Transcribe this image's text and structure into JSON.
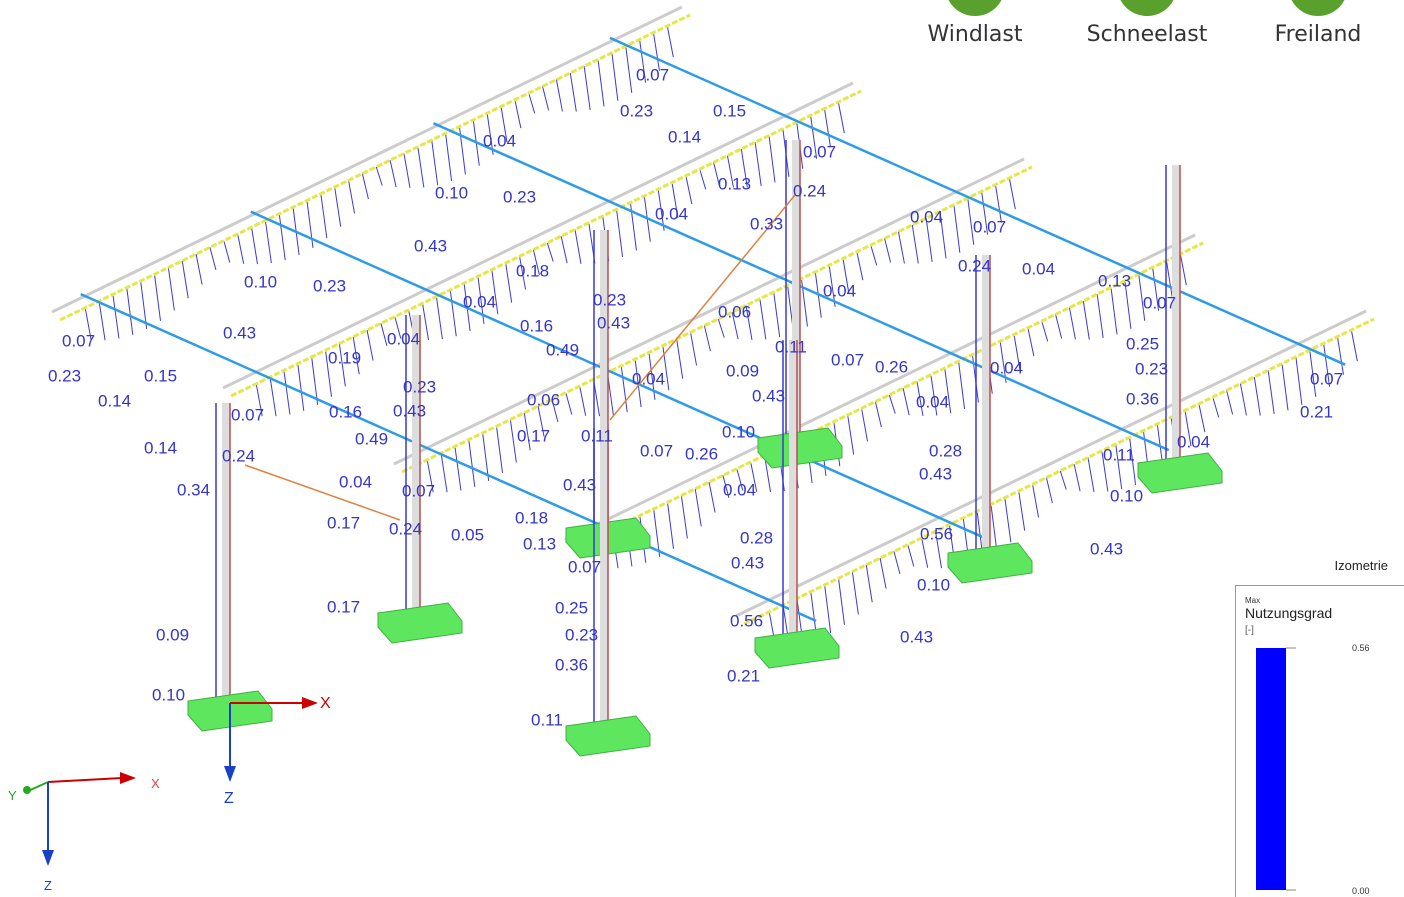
{
  "header": {
    "tabs": [
      "Windlast",
      "Schneelast",
      "Freiland"
    ]
  },
  "model": {
    "result_labels": [
      "0.07",
      "0.23",
      "0.15",
      "0.14",
      "0.04",
      "0.07",
      "0.13",
      "0.24",
      "0.10",
      "0.23",
      "0.04",
      "0.33",
      "0.04",
      "0.07",
      "0.43",
      "0.24",
      "0.04",
      "0.13",
      "0.10",
      "0.23",
      "0.18",
      "0.04",
      "0.04",
      "0.23",
      "0.07",
      "0.06",
      "0.43",
      "0.16",
      "0.43",
      "0.07",
      "0.04",
      "0.11",
      "0.49",
      "0.25",
      "0.19",
      "0.07",
      "0.26",
      "0.04",
      "0.09",
      "0.23",
      "0.15",
      "0.23",
      "0.04",
      "0.23",
      "0.43",
      "0.36",
      "0.07",
      "0.14",
      "0.06",
      "0.04",
      "0.16",
      "0.43",
      "0.07",
      "0.21",
      "0.17",
      "0.11",
      "0.49",
      "0.10",
      "0.04",
      "0.14",
      "0.24",
      "0.07",
      "0.26",
      "0.28",
      "0.11",
      "0.43",
      "0.04",
      "0.07",
      "0.34",
      "0.43",
      "0.04",
      "0.10",
      "0.17",
      "0.24",
      "0.05",
      "0.18",
      "0.13",
      "0.28",
      "0.56",
      "0.07",
      "0.43",
      "0.43",
      "0.10",
      "0.17",
      "0.25",
      "0.56",
      "0.23",
      "0.43",
      "0.09",
      "0.36",
      "0.21",
      "0.10",
      "0.11"
    ]
  },
  "axes": {
    "main": {
      "x": "X",
      "z": "Z"
    },
    "triad": {
      "x": "X",
      "y": "Y",
      "z": "Z"
    }
  },
  "legend": {
    "view": "Izometrie",
    "max": "Max",
    "quantity": "Nutzungsgrad",
    "unit": "[-]",
    "max_value": "0.56",
    "min_value": "0.00"
  }
}
